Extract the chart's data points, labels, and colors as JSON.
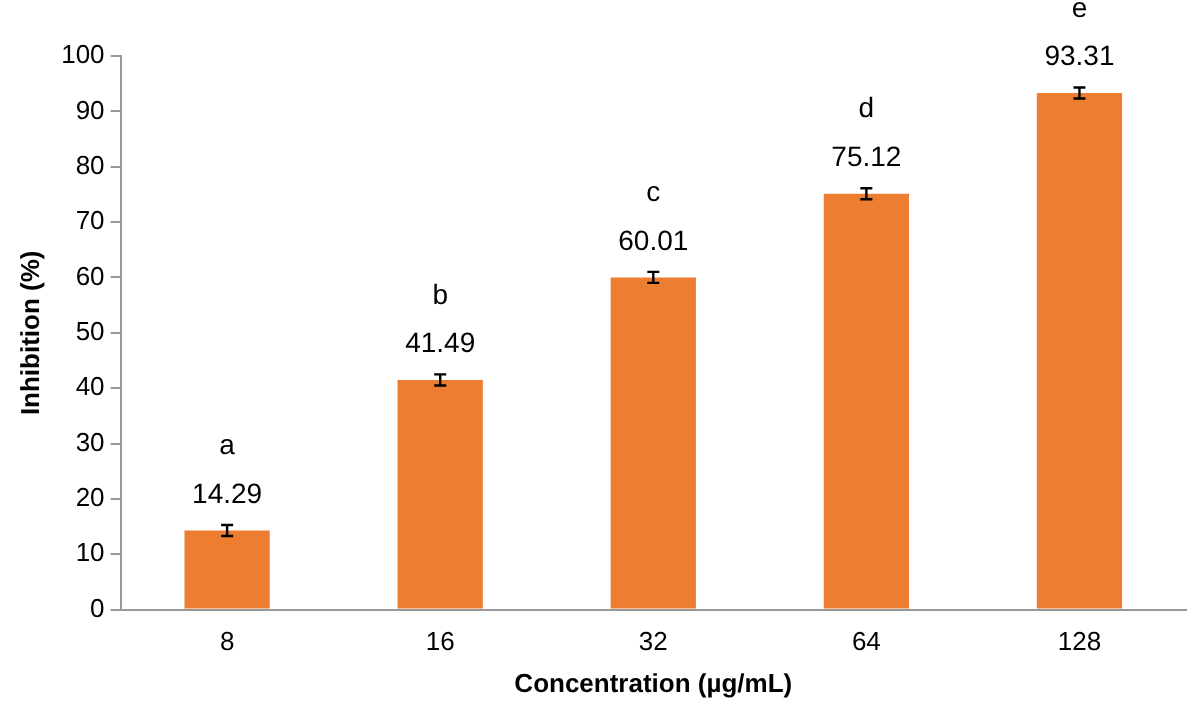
{
  "chart_data": {
    "type": "bar",
    "xlabel": "Concentration (µg/mL)",
    "ylabel": "Inhibition (%)",
    "categories": [
      "8",
      "16",
      "32",
      "64",
      "128"
    ],
    "values": [
      14.29,
      41.49,
      60.01,
      75.12,
      93.31
    ],
    "color": "#ed7d31",
    "errors": [
      1,
      1,
      1,
      1,
      1
    ],
    "ylim": [
      0,
      100
    ],
    "yticks": [
      0,
      10,
      20,
      30,
      40,
      50,
      60,
      70,
      80,
      90,
      100
    ],
    "grid": false,
    "legend": false,
    "data_labels": true,
    "annotations": [
      {
        "text": "a",
        "x": "8",
        "y": 14.29
      },
      {
        "text": "b",
        "x": "16",
        "y": 41.49
      },
      {
        "text": "c",
        "x": "32",
        "y": 60.01
      },
      {
        "text": "d",
        "x": "64",
        "y": 75.12
      },
      {
        "text": "e",
        "x": "128",
        "y": 93.31
      }
    ]
  }
}
